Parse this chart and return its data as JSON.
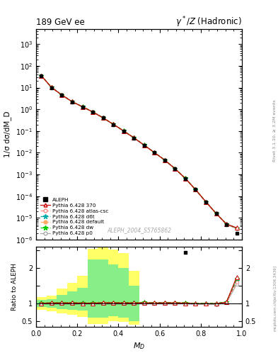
{
  "title_left": "189 GeV ee",
  "title_right": "γ*/Z (Hadronic)",
  "ylabel_main": "1/σ dσ/dM_D",
  "ylabel_ratio": "Ratio to ALEPH",
  "xlabel": "M_D",
  "right_label": "Rivet 3.1.10, ≥ 3.2M events",
  "watermark": "ALEPH_2004_S5765862",
  "ylim_main": [
    1e-06,
    5000.0
  ],
  "ylim_ratio": [
    0.35,
    2.6
  ],
  "xlim": [
    0.0,
    1.0
  ],
  "aleph_x": [
    0.025,
    0.075,
    0.125,
    0.175,
    0.225,
    0.275,
    0.325,
    0.375,
    0.425,
    0.475,
    0.525,
    0.575,
    0.625,
    0.675,
    0.725,
    0.775,
    0.825,
    0.875,
    0.925,
    0.975
  ],
  "aleph_y": [
    35.0,
    10.0,
    4.5,
    2.2,
    1.3,
    0.75,
    0.4,
    0.2,
    0.1,
    0.048,
    0.022,
    0.01,
    0.0045,
    0.0018,
    0.00065,
    0.0002,
    5.5e-05,
    1.6e-05,
    5e-06,
    2e-06
  ],
  "aleph_yerr": [
    2.0,
    0.6,
    0.25,
    0.12,
    0.07,
    0.04,
    0.02,
    0.01,
    0.006,
    0.003,
    0.0014,
    0.0007,
    0.0003,
    0.00012,
    5e-05,
    1.5e-05,
    4e-06,
    1.2e-06,
    4e-07,
    1.5e-07
  ],
  "pythia_x": [
    0.025,
    0.075,
    0.125,
    0.175,
    0.225,
    0.275,
    0.325,
    0.375,
    0.425,
    0.475,
    0.525,
    0.575,
    0.625,
    0.675,
    0.725,
    0.775,
    0.825,
    0.875,
    0.925,
    0.975
  ],
  "py370_y": [
    35.5,
    10.2,
    4.6,
    2.25,
    1.32,
    0.76,
    0.41,
    0.205,
    0.102,
    0.049,
    0.0225,
    0.0102,
    0.0046,
    0.00184,
    0.00066,
    0.0002,
    5.5e-05,
    1.6e-05,
    5.2e-06,
    3.5e-06
  ],
  "pyatlas_y": [
    35.3,
    10.1,
    4.55,
    2.23,
    1.31,
    0.755,
    0.408,
    0.202,
    0.101,
    0.0485,
    0.0223,
    0.0101,
    0.00458,
    0.00183,
    0.000655,
    0.000198,
    5.45e-05,
    1.58e-05,
    5.15e-06,
    3.2e-06
  ],
  "pyd6t_y": [
    35.4,
    10.15,
    4.57,
    2.24,
    1.315,
    0.758,
    0.409,
    0.203,
    0.1015,
    0.0488,
    0.02255,
    0.01015,
    0.00462,
    0.001835,
    0.00066,
    0.000199,
    5.48e-05,
    1.59e-05,
    5.18e-06,
    3.3e-06
  ],
  "pydefault_y": [
    35.4,
    10.12,
    4.56,
    2.235,
    1.312,
    0.757,
    0.409,
    0.203,
    0.1012,
    0.0487,
    0.0225,
    0.01012,
    0.00461,
    0.001832,
    0.000658,
    0.000199,
    5.46e-05,
    1.585e-05,
    5.16e-06,
    3.25e-06
  ],
  "pydw_y": [
    35.6,
    10.25,
    4.62,
    2.26,
    1.325,
    0.762,
    0.412,
    0.206,
    0.103,
    0.0495,
    0.0228,
    0.01025,
    0.00465,
    0.00185,
    0.000665,
    0.000202,
    5.55e-05,
    1.62e-05,
    5.25e-06,
    3.4e-06
  ],
  "pyp0_y": [
    35.2,
    10.05,
    4.52,
    2.21,
    1.305,
    0.748,
    0.405,
    0.2,
    0.1,
    0.0482,
    0.0221,
    0.01005,
    0.00455,
    0.00182,
    0.000648,
    0.000196,
    5.4e-05,
    1.56e-05,
    5.1e-06,
    3.1e-06
  ],
  "ratio_py370": [
    1.01,
    1.02,
    1.02,
    1.02,
    1.015,
    1.013,
    1.025,
    1.025,
    1.02,
    1.02,
    1.023,
    1.02,
    1.022,
    1.022,
    1.015,
    1.0,
    1.0,
    1.0,
    1.04,
    1.75
  ],
  "ratio_pyatlas": [
    1.009,
    1.01,
    1.011,
    1.014,
    1.008,
    1.007,
    1.02,
    1.01,
    1.01,
    1.01,
    1.014,
    1.01,
    1.018,
    1.017,
    1.008,
    0.99,
    0.991,
    0.988,
    1.03,
    1.6
  ],
  "ratio_pyd6t": [
    1.011,
    1.015,
    1.015,
    1.018,
    1.012,
    1.011,
    1.023,
    1.015,
    1.015,
    1.017,
    1.025,
    1.015,
    1.027,
    1.019,
    1.015,
    0.995,
    0.996,
    0.994,
    1.036,
    1.65
  ],
  "ratio_pydefault": [
    1.011,
    1.012,
    1.013,
    1.016,
    1.009,
    1.009,
    1.023,
    1.015,
    1.012,
    1.015,
    1.023,
    1.012,
    1.024,
    1.018,
    1.012,
    0.995,
    0.993,
    0.991,
    1.032,
    1.625
  ],
  "ratio_pydw": [
    1.017,
    1.025,
    1.027,
    1.027,
    1.019,
    1.016,
    1.03,
    1.03,
    1.03,
    1.031,
    1.036,
    1.025,
    1.033,
    1.028,
    1.023,
    1.01,
    1.009,
    1.013,
    1.05,
    1.7
  ],
  "ratio_pyp0": [
    1.006,
    1.005,
    1.004,
    1.005,
    1.004,
    0.997,
    1.013,
    1.0,
    1.0,
    1.004,
    1.005,
    1.005,
    1.011,
    1.011,
    0.997,
    0.98,
    0.982,
    0.975,
    1.02,
    1.55
  ],
  "green_band_x": [
    0.0,
    0.05,
    0.1,
    0.15,
    0.2,
    0.25,
    0.3,
    0.35,
    0.4,
    0.45,
    0.5
  ],
  "green_band_lo": [
    0.9,
    0.88,
    0.85,
    0.82,
    0.8,
    0.6,
    0.6,
    0.65,
    0.6,
    0.5,
    0.5
  ],
  "green_band_hi": [
    1.1,
    1.12,
    1.25,
    1.35,
    1.45,
    2.25,
    2.25,
    2.1,
    2.0,
    1.5,
    1.5
  ],
  "yellow_band_x": [
    0.0,
    0.05,
    0.1,
    0.15,
    0.2,
    0.25,
    0.3,
    0.35,
    0.4,
    0.45,
    0.5
  ],
  "yellow_band_lo": [
    0.82,
    0.78,
    0.72,
    0.68,
    0.62,
    0.42,
    0.42,
    0.5,
    0.48,
    0.4,
    0.4
  ],
  "yellow_band_hi": [
    1.18,
    1.22,
    1.42,
    1.58,
    1.78,
    2.55,
    2.58,
    2.52,
    2.42,
    1.92,
    1.92
  ],
  "colors": {
    "aleph": "#000000",
    "py370": "#cc0000",
    "pyatlas": "#ff8888",
    "pyd6t": "#00aaaa",
    "pydefault": "#ffaa66",
    "pydw": "#00cc00",
    "pyp0": "#aaaaaa"
  }
}
